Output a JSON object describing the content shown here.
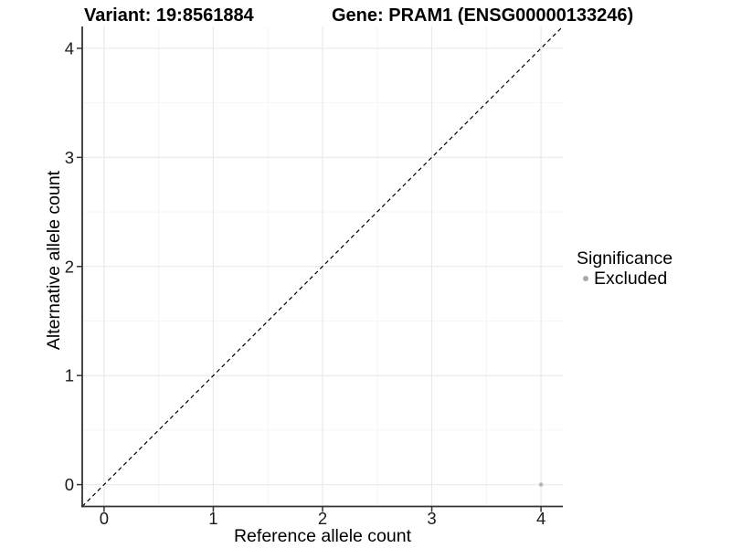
{
  "chart_data": {
    "type": "scatter",
    "title_left": "Variant: 19:8561884",
    "title_right": "Gene: PRAM1 (ENSG00000133246)",
    "xlabel": "Reference allele count",
    "ylabel": "Alternative allele count",
    "xlim": [
      -0.2,
      4.2
    ],
    "ylim": [
      -0.2,
      4.2
    ],
    "xticks": [
      0,
      1,
      2,
      3,
      4
    ],
    "yticks": [
      0,
      1,
      2,
      3,
      4
    ],
    "x_minor_ticks": [
      0.5,
      1.5,
      2.5,
      3.5
    ],
    "y_minor_ticks": [
      0.5,
      1.5,
      2.5,
      3.5
    ],
    "grid": "on",
    "identity_line": {
      "style": "dashed",
      "from": [
        -0.2,
        -0.2
      ],
      "to": [
        4.2,
        4.2
      ]
    },
    "series": [
      {
        "name": "Excluded",
        "color": "#b9b9b9",
        "points": [
          {
            "x": 4,
            "y": 0
          }
        ]
      }
    ],
    "legend": {
      "title": "Significance",
      "position": "right",
      "items": [
        {
          "label": "Excluded",
          "color": "#a9a9a9"
        }
      ]
    },
    "colors": {
      "background": "#ffffff",
      "grid_major": "#e8e8e8",
      "grid_minor": "#f4f4f4",
      "axis_line": "#333333",
      "tick_mark": "#333333",
      "tick_label": "#1a1a1a",
      "identity_line": "#000000",
      "title_text": "#000000"
    }
  }
}
